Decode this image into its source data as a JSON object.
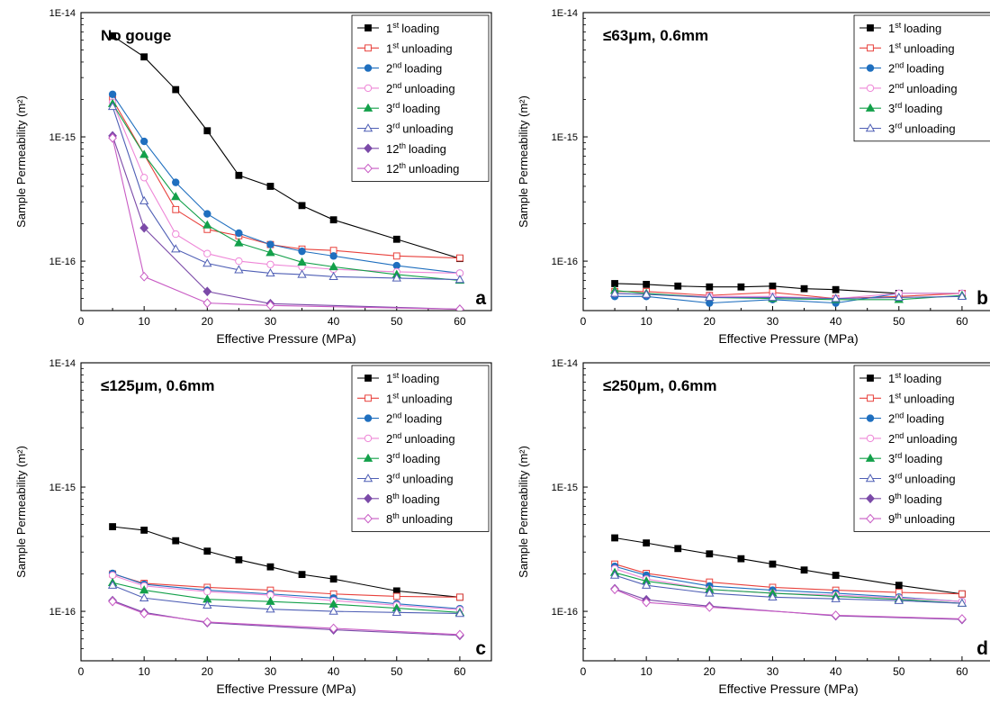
{
  "chart_data": [
    {
      "type": "line",
      "panel_label": "a",
      "annotation": "No gouge",
      "xlabel": "Effective Pressure (MPa)",
      "ylabel": "Sample Permeability (m²)",
      "xlim": [
        0,
        65
      ],
      "ylim": [
        4e-17,
        1e-14
      ],
      "yscale": "log",
      "xticks": [
        0,
        10,
        20,
        30,
        40,
        50,
        60
      ],
      "ytick_labels": [
        "1E-14",
        "1E-15",
        "1E-16"
      ],
      "legend_position": "top-right",
      "series": [
        {
          "ordinal": "1",
          "suffix": "st",
          "action": "loading",
          "color": "#000000",
          "marker": "square",
          "filled": true,
          "x": [
            5,
            10,
            15,
            20,
            25,
            30,
            35,
            40,
            50,
            60
          ],
          "y": [
            6.5e-15,
            4.4e-15,
            2.4e-15,
            1.12e-15,
            4.9e-16,
            4e-16,
            2.8e-16,
            2.15e-16,
            1.5e-16,
            1.05e-16
          ]
        },
        {
          "ordinal": "1",
          "suffix": "st",
          "action": "unloading",
          "color": "#e8413c",
          "marker": "square",
          "filled": false,
          "x": [
            5,
            15,
            20,
            25,
            30,
            35,
            40,
            50,
            60
          ],
          "y": [
            2e-15,
            2.6e-16,
            1.8e-16,
            1.6e-16,
            1.36e-16,
            1.25e-16,
            1.22e-16,
            1.1e-16,
            1.06e-16
          ]
        },
        {
          "ordinal": "2",
          "suffix": "nd",
          "action": "loading",
          "color": "#1f6fbf",
          "marker": "circle",
          "filled": true,
          "x": [
            5,
            10,
            15,
            20,
            25,
            30,
            35,
            40,
            50,
            60
          ],
          "y": [
            2.2e-15,
            9.2e-16,
            4.3e-16,
            2.4e-16,
            1.68e-16,
            1.36e-16,
            1.2e-16,
            1.1e-16,
            9.2e-17,
            8e-17
          ]
        },
        {
          "ordinal": "2",
          "suffix": "nd",
          "action": "unloading",
          "color": "#ee86d7",
          "marker": "circle",
          "filled": false,
          "x": [
            5,
            10,
            15,
            20,
            25,
            30,
            35,
            40,
            50,
            60
          ],
          "y": [
            1.9e-15,
            4.7e-16,
            1.65e-16,
            1.15e-16,
            1e-16,
            9.4e-17,
            9e-17,
            8.6e-17,
            8.2e-17,
            8e-17
          ]
        },
        {
          "ordinal": "3",
          "suffix": "rd",
          "action": "loading",
          "color": "#13a04a",
          "marker": "triangle",
          "filled": true,
          "x": [
            5,
            10,
            15,
            20,
            25,
            30,
            35,
            40,
            50,
            60
          ],
          "y": [
            1.85e-15,
            7.2e-16,
            3.3e-16,
            1.95e-16,
            1.4e-16,
            1.17e-16,
            9.8e-17,
            9e-17,
            7.8e-17,
            7e-17
          ]
        },
        {
          "ordinal": "3",
          "suffix": "rd",
          "action": "unloading",
          "color": "#4f5fb5",
          "marker": "triangle",
          "filled": false,
          "x": [
            5,
            10,
            15,
            20,
            25,
            30,
            35,
            40,
            50,
            60
          ],
          "y": [
            1.75e-15,
            3.05e-16,
            1.25e-16,
            9.6e-17,
            8.5e-17,
            8e-17,
            7.8e-17,
            7.5e-17,
            7.3e-17,
            7.1e-17
          ]
        },
        {
          "ordinal": "12",
          "suffix": "th",
          "action": "loading",
          "color": "#7b4aa8",
          "marker": "diamond",
          "filled": true,
          "x": [
            5,
            10,
            20,
            30,
            60
          ],
          "y": [
            1.02e-15,
            1.85e-16,
            5.7e-17,
            4.55e-17,
            4.1e-17
          ]
        },
        {
          "ordinal": "12",
          "suffix": "th",
          "action": "unloading",
          "color": "#c85bc4",
          "marker": "diamond",
          "filled": false,
          "x": [
            5,
            10,
            20,
            30,
            60
          ],
          "y": [
            9.8e-16,
            7.5e-17,
            4.6e-17,
            4.4e-17,
            4.1e-17
          ]
        }
      ]
    },
    {
      "type": "line",
      "panel_label": "b",
      "annotation": "≤63μm, 0.6mm",
      "xlabel": "Effective Pressure (MPa)",
      "ylabel": "Sample Permeability (m²)",
      "xlim": [
        0,
        65
      ],
      "ylim": [
        4e-17,
        1e-14
      ],
      "yscale": "log",
      "xticks": [
        0,
        10,
        20,
        30,
        40,
        50,
        60
      ],
      "ytick_labels": [
        "1E-14",
        "1E-15",
        "1E-16"
      ],
      "legend_position": "top-right",
      "series": [
        {
          "ordinal": "1",
          "suffix": "st",
          "action": "loading",
          "color": "#000000",
          "marker": "square",
          "filled": true,
          "x": [
            5,
            10,
            15,
            20,
            25,
            30,
            35,
            40,
            50,
            60
          ],
          "y": [
            6.6e-17,
            6.5e-17,
            6.3e-17,
            6.2e-17,
            6.2e-17,
            6.3e-17,
            6e-17,
            5.9e-17,
            5.5e-17,
            5.5e-17
          ]
        },
        {
          "ordinal": "1",
          "suffix": "st",
          "action": "unloading",
          "color": "#e8413c",
          "marker": "square",
          "filled": false,
          "x": [
            5,
            10,
            20,
            30,
            40,
            50,
            60
          ],
          "y": [
            5.7e-17,
            5.7e-17,
            5.3e-17,
            5.6e-17,
            5e-17,
            5.2e-17,
            5.5e-17
          ]
        },
        {
          "ordinal": "2",
          "suffix": "nd",
          "action": "loading",
          "color": "#1f6fbf",
          "marker": "circle",
          "filled": true,
          "x": [
            5,
            10,
            20,
            30,
            40,
            50,
            60
          ],
          "y": [
            5.2e-17,
            5.2e-17,
            4.6e-17,
            4.9e-17,
            4.6e-17,
            5.5e-17,
            5.5e-17
          ]
        },
        {
          "ordinal": "2",
          "suffix": "nd",
          "action": "unloading",
          "color": "#ee86d7",
          "marker": "circle",
          "filled": false,
          "x": [
            5,
            10,
            20,
            30,
            40,
            50,
            60
          ],
          "y": [
            5.5e-17,
            5.4e-17,
            5.2e-17,
            5.2e-17,
            5e-17,
            5.5e-17,
            5.5e-17
          ]
        },
        {
          "ordinal": "3",
          "suffix": "rd",
          "action": "loading",
          "color": "#13a04a",
          "marker": "triangle",
          "filled": true,
          "x": [
            5,
            10,
            20,
            30,
            40,
            50,
            60
          ],
          "y": [
            5.8e-17,
            5.5e-17,
            5.1e-17,
            5e-17,
            4.9e-17,
            4.9e-17,
            5.3e-17
          ]
        },
        {
          "ordinal": "3",
          "suffix": "rd",
          "action": "unloading",
          "color": "#4f5fb5",
          "marker": "triangle",
          "filled": false,
          "x": [
            5,
            10,
            20,
            30,
            40,
            50,
            60
          ],
          "y": [
            5.5e-17,
            5.4e-17,
            5.1e-17,
            5.1e-17,
            5e-17,
            5.1e-17,
            5.2e-17
          ]
        }
      ]
    },
    {
      "type": "line",
      "panel_label": "c",
      "annotation": "≤125μm, 0.6mm",
      "xlabel": "Effective Pressure (MPa)",
      "ylabel": "Sample Permeability (m²)",
      "xlim": [
        0,
        65
      ],
      "ylim": [
        4e-17,
        1e-14
      ],
      "yscale": "log",
      "xticks": [
        0,
        10,
        20,
        30,
        40,
        50,
        60
      ],
      "ytick_labels": [
        "1E-14",
        "1E-15",
        "1E-16"
      ],
      "legend_position": "top-right",
      "series": [
        {
          "ordinal": "1",
          "suffix": "st",
          "action": "loading",
          "color": "#000000",
          "marker": "square",
          "filled": true,
          "x": [
            5,
            10,
            15,
            20,
            25,
            30,
            35,
            40,
            50,
            60
          ],
          "y": [
            4.8e-16,
            4.5e-16,
            3.7e-16,
            3.05e-16,
            2.6e-16,
            2.28e-16,
            1.98e-16,
            1.82e-16,
            1.46e-16,
            1.3e-16
          ]
        },
        {
          "ordinal": "1",
          "suffix": "st",
          "action": "unloading",
          "color": "#e8413c",
          "marker": "square",
          "filled": false,
          "x": [
            5,
            10,
            20,
            30,
            40,
            50,
            60
          ],
          "y": [
            2e-16,
            1.68e-16,
            1.56e-16,
            1.48e-16,
            1.38e-16,
            1.32e-16,
            1.3e-16
          ]
        },
        {
          "ordinal": "2",
          "suffix": "nd",
          "action": "loading",
          "color": "#1f6fbf",
          "marker": "circle",
          "filled": true,
          "x": [
            5,
            10,
            20,
            30,
            40,
            50,
            60
          ],
          "y": [
            2.02e-16,
            1.65e-16,
            1.48e-16,
            1.38e-16,
            1.28e-16,
            1.15e-16,
            1.05e-16
          ]
        },
        {
          "ordinal": "2",
          "suffix": "nd",
          "action": "unloading",
          "color": "#ee86d7",
          "marker": "circle",
          "filled": false,
          "x": [
            5,
            10,
            20,
            30,
            40,
            50,
            60
          ],
          "y": [
            1.95e-16,
            1.6e-16,
            1.44e-16,
            1.35e-16,
            1.22e-16,
            1.12e-16,
            1.03e-16
          ]
        },
        {
          "ordinal": "3",
          "suffix": "rd",
          "action": "loading",
          "color": "#13a04a",
          "marker": "triangle",
          "filled": true,
          "x": [
            5,
            10,
            20,
            30,
            40,
            50,
            60
          ],
          "y": [
            1.7e-16,
            1.48e-16,
            1.25e-16,
            1.2e-16,
            1.14e-16,
            1.06e-16,
            9.8e-17
          ]
        },
        {
          "ordinal": "3",
          "suffix": "rd",
          "action": "unloading",
          "color": "#4f5fb5",
          "marker": "triangle",
          "filled": false,
          "x": [
            5,
            10,
            20,
            30,
            40,
            50,
            60
          ],
          "y": [
            1.62e-16,
            1.28e-16,
            1.12e-16,
            1.04e-16,
            1e-16,
            9.8e-17,
            9.6e-17
          ]
        },
        {
          "ordinal": "8",
          "suffix": "th",
          "action": "loading",
          "color": "#7b4aa8",
          "marker": "diamond",
          "filled": true,
          "x": [
            5,
            10,
            20,
            40,
            60
          ],
          "y": [
            1.22e-16,
            9.8e-17,
            8.1e-17,
            7.1e-17,
            6.4e-17
          ]
        },
        {
          "ordinal": "8",
          "suffix": "th",
          "action": "unloading",
          "color": "#c85bc4",
          "marker": "diamond",
          "filled": false,
          "x": [
            5,
            10,
            20,
            40,
            60
          ],
          "y": [
            1.2e-16,
            9.6e-17,
            8.2e-17,
            7.3e-17,
            6.5e-17
          ]
        }
      ]
    },
    {
      "type": "line",
      "panel_label": "d",
      "annotation": "≤250μm, 0.6mm",
      "xlabel": "Effective Pressure (MPa)",
      "ylabel": "Sample Permeability (m²)",
      "xlim": [
        0,
        65
      ],
      "ylim": [
        4e-17,
        1e-14
      ],
      "yscale": "log",
      "xticks": [
        0,
        10,
        20,
        30,
        40,
        50,
        60
      ],
      "ytick_labels": [
        "1E-14",
        "1E-15",
        "1E-16"
      ],
      "legend_position": "top-right",
      "series": [
        {
          "ordinal": "1",
          "suffix": "st",
          "action": "loading",
          "color": "#000000",
          "marker": "square",
          "filled": true,
          "x": [
            5,
            10,
            15,
            20,
            25,
            30,
            35,
            40,
            50,
            60
          ],
          "y": [
            3.9e-16,
            3.55e-16,
            3.2e-16,
            2.9e-16,
            2.65e-16,
            2.4e-16,
            2.15e-16,
            1.95e-16,
            1.62e-16,
            1.38e-16
          ]
        },
        {
          "ordinal": "1",
          "suffix": "st",
          "action": "unloading",
          "color": "#e8413c",
          "marker": "square",
          "filled": false,
          "x": [
            5,
            10,
            20,
            30,
            40,
            50,
            60
          ],
          "y": [
            2.4e-16,
            2.02e-16,
            1.72e-16,
            1.56e-16,
            1.48e-16,
            1.42e-16,
            1.38e-16
          ]
        },
        {
          "ordinal": "2",
          "suffix": "nd",
          "action": "loading",
          "color": "#1f6fbf",
          "marker": "circle",
          "filled": true,
          "x": [
            5,
            10,
            20,
            30,
            40,
            50,
            60
          ],
          "y": [
            2.3e-16,
            1.95e-16,
            1.6e-16,
            1.48e-16,
            1.4e-16,
            1.3e-16,
            1.2e-16
          ]
        },
        {
          "ordinal": "2",
          "suffix": "nd",
          "action": "unloading",
          "color": "#ee86d7",
          "marker": "circle",
          "filled": false,
          "x": [
            5,
            10,
            20,
            30,
            40,
            50,
            60
          ],
          "y": [
            2.2e-16,
            1.82e-16,
            1.5e-16,
            1.4e-16,
            1.35e-16,
            1.28e-16,
            1.2e-16
          ]
        },
        {
          "ordinal": "3",
          "suffix": "rd",
          "action": "loading",
          "color": "#13a04a",
          "marker": "triangle",
          "filled": true,
          "x": [
            5,
            10,
            20,
            30,
            40,
            50,
            60
          ],
          "y": [
            2.05e-16,
            1.75e-16,
            1.5e-16,
            1.4e-16,
            1.32e-16,
            1.25e-16,
            1.16e-16
          ]
        },
        {
          "ordinal": "3",
          "suffix": "rd",
          "action": "unloading",
          "color": "#4f5fb5",
          "marker": "triangle",
          "filled": false,
          "x": [
            5,
            10,
            20,
            30,
            40,
            50,
            60
          ],
          "y": [
            1.95e-16,
            1.62e-16,
            1.4e-16,
            1.3e-16,
            1.26e-16,
            1.22e-16,
            1.16e-16
          ]
        },
        {
          "ordinal": "9",
          "suffix": "th",
          "action": "loading",
          "color": "#7b4aa8",
          "marker": "diamond",
          "filled": true,
          "x": [
            5,
            10,
            20,
            40,
            60
          ],
          "y": [
            1.52e-16,
            1.24e-16,
            1.1e-16,
            9.2e-17,
            8.6e-17
          ]
        },
        {
          "ordinal": "9",
          "suffix": "th",
          "action": "unloading",
          "color": "#c85bc4",
          "marker": "diamond",
          "filled": false,
          "x": [
            5,
            10,
            20,
            40,
            60
          ],
          "y": [
            1.5e-16,
            1.18e-16,
            1.08e-16,
            9.3e-17,
            8.7e-17
          ]
        }
      ]
    }
  ]
}
